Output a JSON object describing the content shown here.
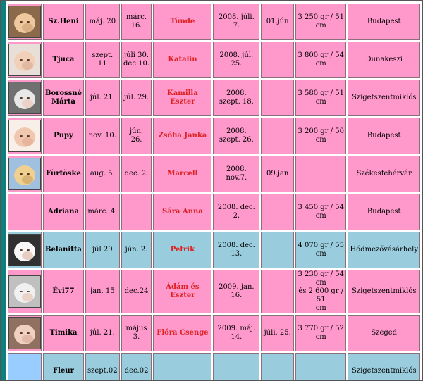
{
  "rows": [
    {
      "nick": "Sz.Heni",
      "d1": "máj. 20",
      "d2": "márc. 16.",
      "baby": "Tünde",
      "birth": "2008. júli. 7.",
      "extra": "01.jún",
      "size": "3 250 gr / 51 cm",
      "city": "Budapest",
      "theme": "pink",
      "photo": true,
      "photo_colors": [
        "#f0c8a0",
        "#c8a070",
        "#8a6a4a"
      ]
    },
    {
      "nick": "Tjuca",
      "d1": "szept. 11",
      "d2": "júli 30.\ndec 10.",
      "baby": "Katalin",
      "birth": "2008. júl. 25.",
      "extra": "",
      "size": "3 800 gr / 54 cm",
      "city": "Dunakeszi",
      "theme": "pink",
      "photo": true,
      "photo_colors": [
        "#f2d0b8",
        "#d8a890",
        "#e8e0d8"
      ]
    },
    {
      "nick": "Borossné\nMárta",
      "d1": "júl. 21.",
      "d2": "júl. 29.",
      "baby": "Kamilla Eszter",
      "birth": "2008. szept. 18.",
      "extra": "",
      "size": "3 580 gr / 51 cm",
      "city": "Szigetszentmiklós",
      "theme": "pink",
      "photo": true,
      "photo_colors": [
        "#e8e8e8",
        "#f0c0b0",
        "#707070"
      ]
    },
    {
      "nick": "Pupy",
      "d1": "nov. 10.",
      "d2": "jún. 26.",
      "baby": "Zsófia Janka",
      "birth": "2008. szept. 26.",
      "extra": "",
      "size": "3 200 gr / 50 cm",
      "city": "Budapest",
      "theme": "pink",
      "photo": true,
      "photo_colors": [
        "#f0c8b0",
        "#e0a890",
        "#f8f0e8"
      ]
    },
    {
      "nick": "Fürtöske",
      "d1": "aug. 5.",
      "d2": "dec. 2.",
      "baby": "Marcell",
      "birth": "2008. nov.7.",
      "extra": "09.jan",
      "size": "",
      "city": "Székesfehérvár",
      "theme": "pink",
      "photo": true,
      "photo_colors": [
        "#f0d090",
        "#c8a060",
        "#a0c0e0"
      ]
    },
    {
      "nick": "Adriana",
      "d1": "márc. 4.",
      "d2": "",
      "baby": "Sára Anna",
      "birth": "2008. dec. 2.",
      "extra": "",
      "size": "3 450 gr / 54 cm",
      "city": "Budapest",
      "theme": "pink",
      "photo": false
    },
    {
      "nick": "Belanitta",
      "d1": "júl 29",
      "d2": "jún. 2.",
      "baby": "Petrik",
      "birth": "2008. dec. 13.",
      "extra": "",
      "size": "4 070 gr / 55 cm",
      "city": "Hódmezővásárhely",
      "theme": "blue",
      "photo": true,
      "photo_colors": [
        "#f8f8f8",
        "#e0b0a0",
        "#303030"
      ]
    },
    {
      "nick": "Évi77",
      "d1": "jan. 15",
      "d2": "dec.24",
      "baby": "Ádám és Eszter",
      "birth": "2009. jan. 16.",
      "extra": "",
      "size": "3 230 gr / 54 cm\nés 2 600 gr / 51\ncm",
      "city": "Szigetszentmiklós",
      "theme": "pink",
      "photo": true,
      "photo_colors": [
        "#f0f0f0",
        "#e8c0b0",
        "#c0c0c0"
      ]
    },
    {
      "nick": "Timika",
      "d1": "júl. 21.",
      "d2": "május 3.",
      "baby": "Flóra Csenge",
      "birth": "2009. máj. 14.",
      "extra": "júli. 25.",
      "size": "3 770 gr / 52 cm",
      "city": "Szeged",
      "theme": "pink",
      "photo": true,
      "photo_colors": [
        "#f0d0c0",
        "#d8a898",
        "#907060"
      ]
    },
    {
      "nick": "Fleur",
      "d1": "szept.02",
      "d2": "dec.02",
      "baby": "",
      "birth": "",
      "extra": "",
      "size": "",
      "city": "Szigetszentmiklós",
      "theme": "blue",
      "photo": false,
      "photo_blank_blue": true
    }
  ]
}
